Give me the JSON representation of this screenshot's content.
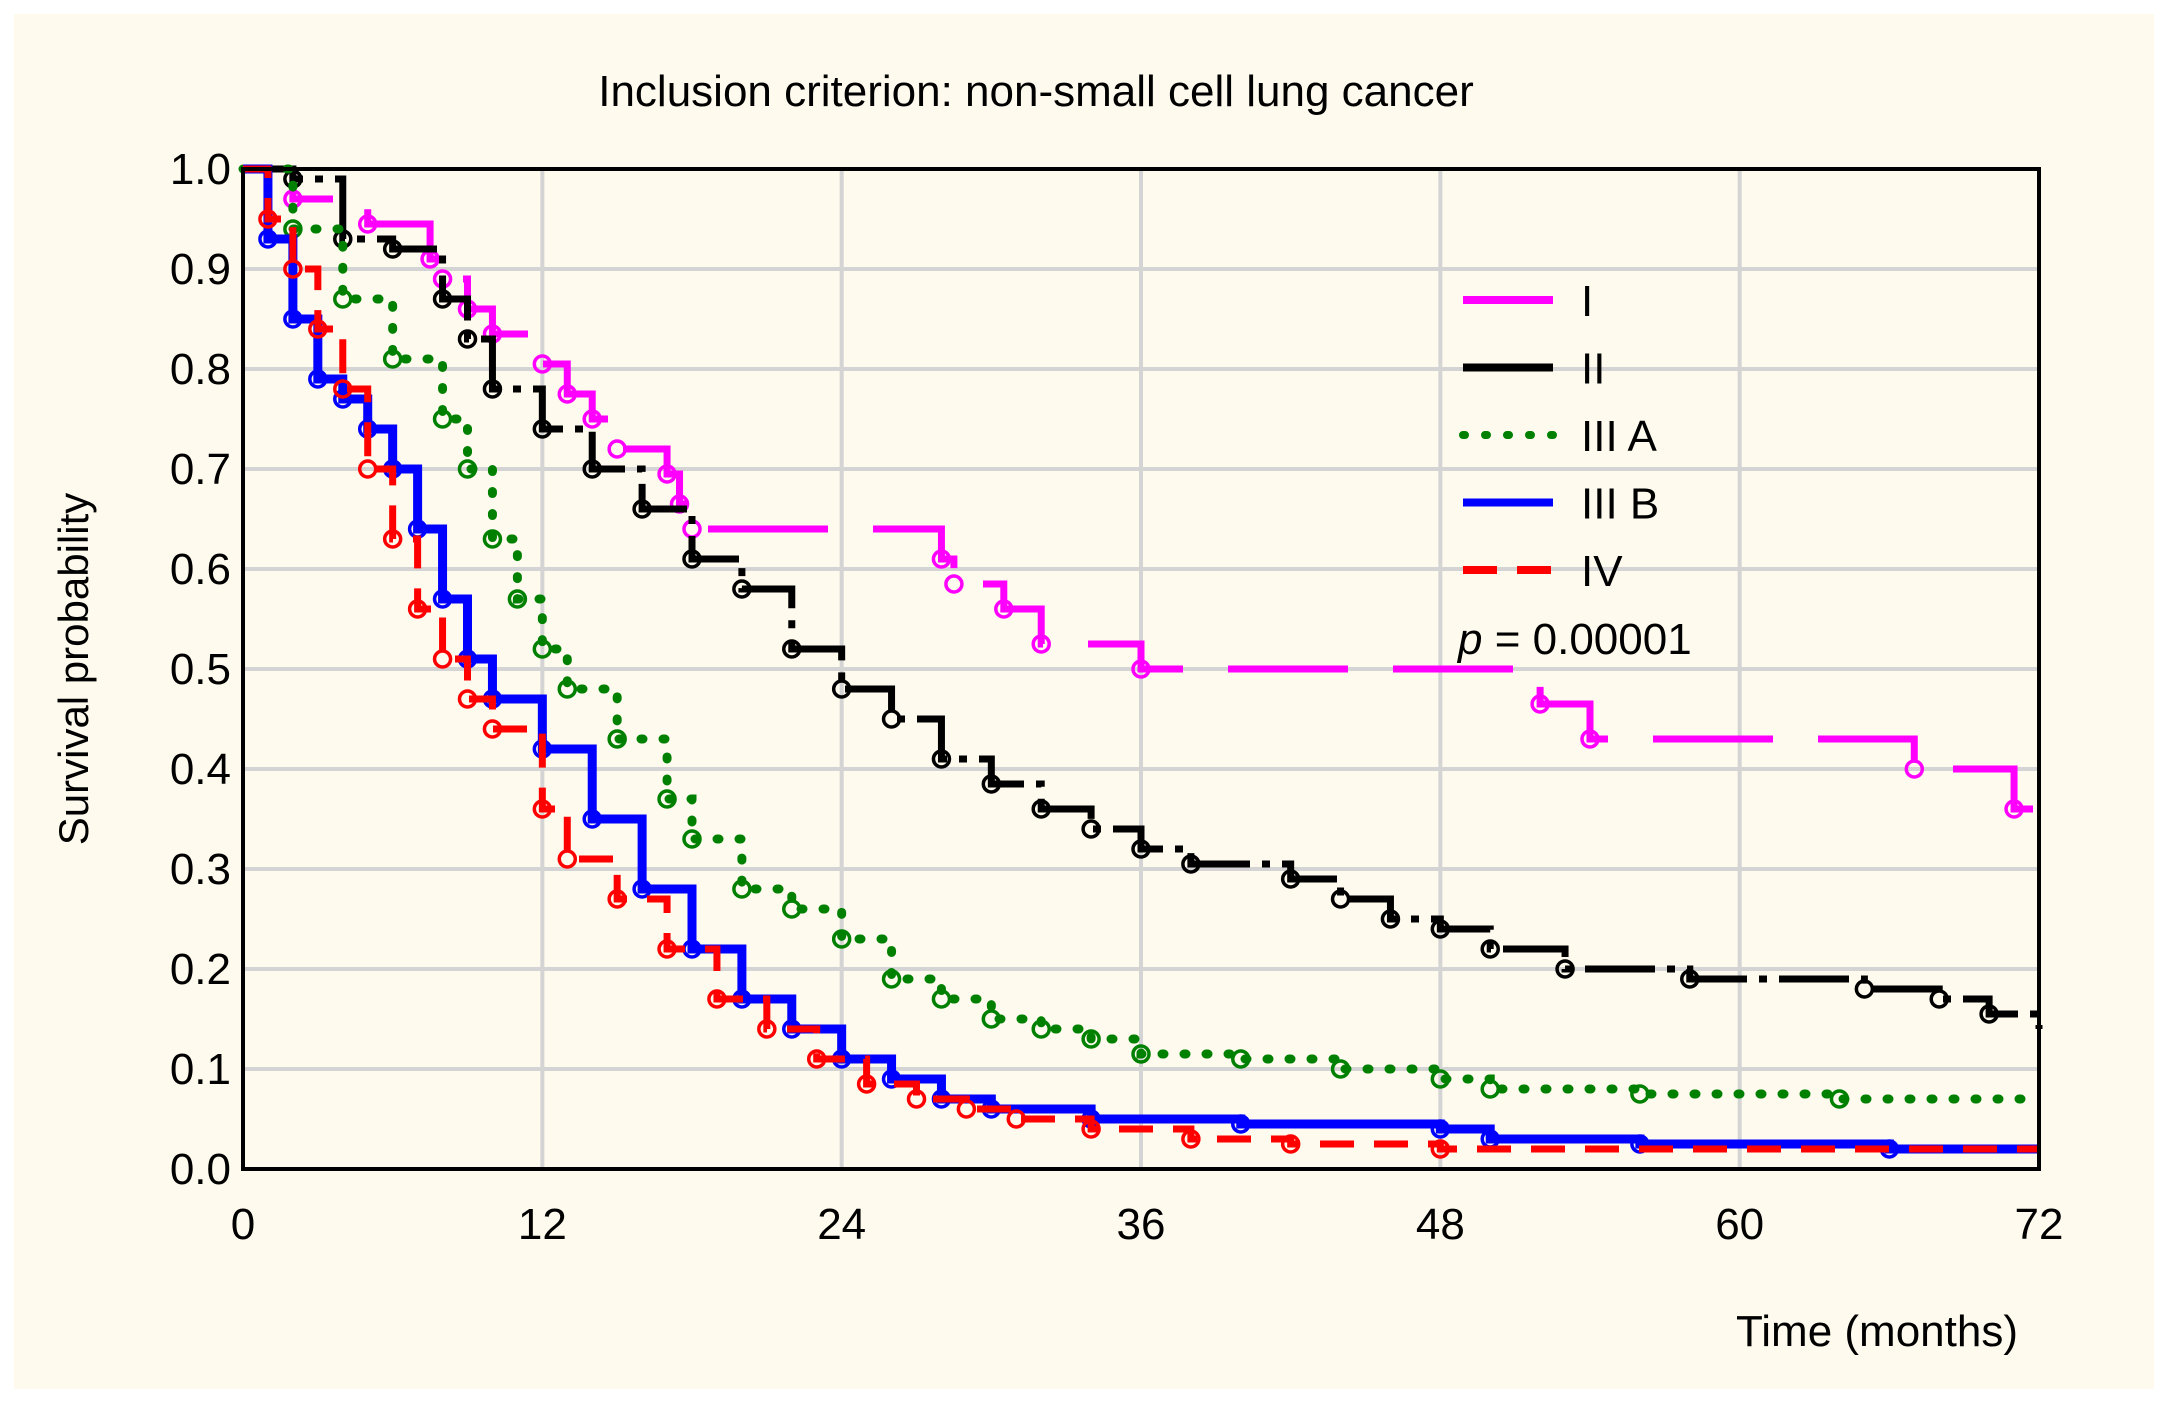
{
  "chart_data": {
    "type": "line",
    "title": "Inclusion criterion: non-small cell lung cancer",
    "xlabel": "Time (months)",
    "ylabel": "Survival probability",
    "xlim": [
      0,
      72
    ],
    "ylim": [
      0,
      1
    ],
    "xticks": [
      0,
      12,
      24,
      36,
      48,
      60,
      72
    ],
    "yticks": [
      "0.0",
      "0.1",
      "0.2",
      "0.3",
      "0.4",
      "0.5",
      "0.6",
      "0.7",
      "0.8",
      "0.9",
      "1.0"
    ],
    "grid": true,
    "legend_position": "top-right",
    "annotation": {
      "p_label": "p",
      "p_value": "= 0.00001"
    },
    "series": [
      {
        "name": "I",
        "color": "#ff00ff",
        "style": "long-dash",
        "points": [
          [
            0,
            1.0
          ],
          [
            2,
            0.97
          ],
          [
            5,
            0.945
          ],
          [
            7.5,
            0.91
          ],
          [
            8,
            0.89
          ],
          [
            9,
            0.86
          ],
          [
            10,
            0.835
          ],
          [
            12,
            0.805
          ],
          [
            13,
            0.775
          ],
          [
            14,
            0.75
          ],
          [
            15,
            0.72
          ],
          [
            17,
            0.695
          ],
          [
            17.5,
            0.665
          ],
          [
            18,
            0.64
          ],
          [
            28,
            0.61
          ],
          [
            28.5,
            0.585
          ],
          [
            30.5,
            0.56
          ],
          [
            32,
            0.525
          ],
          [
            36,
            0.5
          ],
          [
            52,
            0.465
          ],
          [
            54,
            0.43
          ],
          [
            67,
            0.4
          ],
          [
            71,
            0.36
          ],
          [
            72,
            0.36
          ]
        ]
      },
      {
        "name": "II",
        "color": "#000000",
        "style": "dash-dot",
        "points": [
          [
            0,
            1.0
          ],
          [
            2,
            0.99
          ],
          [
            4,
            0.93
          ],
          [
            6,
            0.92
          ],
          [
            8,
            0.87
          ],
          [
            9,
            0.83
          ],
          [
            10,
            0.78
          ],
          [
            12,
            0.74
          ],
          [
            14,
            0.7
          ],
          [
            16,
            0.66
          ],
          [
            18,
            0.61
          ],
          [
            20,
            0.58
          ],
          [
            22,
            0.52
          ],
          [
            24,
            0.48
          ],
          [
            26,
            0.45
          ],
          [
            28,
            0.41
          ],
          [
            30,
            0.385
          ],
          [
            32,
            0.36
          ],
          [
            34,
            0.34
          ],
          [
            36,
            0.32
          ],
          [
            38,
            0.305
          ],
          [
            42,
            0.29
          ],
          [
            44,
            0.27
          ],
          [
            46,
            0.25
          ],
          [
            48,
            0.24
          ],
          [
            50,
            0.22
          ],
          [
            53,
            0.2
          ],
          [
            58,
            0.19
          ],
          [
            65,
            0.18
          ],
          [
            68,
            0.17
          ],
          [
            70,
            0.155
          ],
          [
            72,
            0.14
          ]
        ]
      },
      {
        "name": "III A",
        "color": "#008000",
        "style": "dotted",
        "points": [
          [
            0,
            1.0
          ],
          [
            2,
            0.94
          ],
          [
            4,
            0.87
          ],
          [
            6,
            0.81
          ],
          [
            8,
            0.75
          ],
          [
            9,
            0.7
          ],
          [
            10,
            0.63
          ],
          [
            11,
            0.57
          ],
          [
            12,
            0.52
          ],
          [
            13,
            0.48
          ],
          [
            15,
            0.43
          ],
          [
            17,
            0.37
          ],
          [
            18,
            0.33
          ],
          [
            20,
            0.28
          ],
          [
            22,
            0.26
          ],
          [
            24,
            0.23
          ],
          [
            26,
            0.19
          ],
          [
            28,
            0.17
          ],
          [
            30,
            0.15
          ],
          [
            32,
            0.14
          ],
          [
            34,
            0.13
          ],
          [
            36,
            0.115
          ],
          [
            40,
            0.11
          ],
          [
            44,
            0.1
          ],
          [
            48,
            0.09
          ],
          [
            50,
            0.08
          ],
          [
            56,
            0.075
          ],
          [
            64,
            0.07
          ],
          [
            72,
            0.07
          ]
        ]
      },
      {
        "name": "III B",
        "color": "#0000ff",
        "style": "solid",
        "points": [
          [
            0,
            1.0
          ],
          [
            1,
            0.93
          ],
          [
            2,
            0.85
          ],
          [
            3,
            0.79
          ],
          [
            4,
            0.77
          ],
          [
            5,
            0.74
          ],
          [
            6,
            0.7
          ],
          [
            7,
            0.64
          ],
          [
            8,
            0.57
          ],
          [
            9,
            0.51
          ],
          [
            10,
            0.47
          ],
          [
            12,
            0.42
          ],
          [
            14,
            0.35
          ],
          [
            16,
            0.28
          ],
          [
            18,
            0.22
          ],
          [
            20,
            0.17
          ],
          [
            22,
            0.14
          ],
          [
            24,
            0.11
          ],
          [
            26,
            0.09
          ],
          [
            28,
            0.07
          ],
          [
            30,
            0.06
          ],
          [
            34,
            0.05
          ],
          [
            40,
            0.045
          ],
          [
            48,
            0.04
          ],
          [
            50,
            0.03
          ],
          [
            56,
            0.025
          ],
          [
            66,
            0.02
          ],
          [
            72,
            0.02
          ]
        ]
      },
      {
        "name": "IV",
        "color": "#ff0000",
        "style": "dashed",
        "points": [
          [
            0,
            1.0
          ],
          [
            1,
            0.95
          ],
          [
            2,
            0.9
          ],
          [
            3,
            0.84
          ],
          [
            4,
            0.78
          ],
          [
            5,
            0.7
          ],
          [
            6,
            0.63
          ],
          [
            7,
            0.56
          ],
          [
            8,
            0.51
          ],
          [
            9,
            0.47
          ],
          [
            10,
            0.44
          ],
          [
            12,
            0.36
          ],
          [
            13,
            0.31
          ],
          [
            15,
            0.27
          ],
          [
            17,
            0.22
          ],
          [
            19,
            0.17
          ],
          [
            21,
            0.14
          ],
          [
            23,
            0.11
          ],
          [
            25,
            0.085
          ],
          [
            27,
            0.07
          ],
          [
            29,
            0.06
          ],
          [
            31,
            0.05
          ],
          [
            34,
            0.04
          ],
          [
            38,
            0.03
          ],
          [
            42,
            0.025
          ],
          [
            48,
            0.02
          ],
          [
            72,
            0.02
          ]
        ]
      }
    ]
  }
}
